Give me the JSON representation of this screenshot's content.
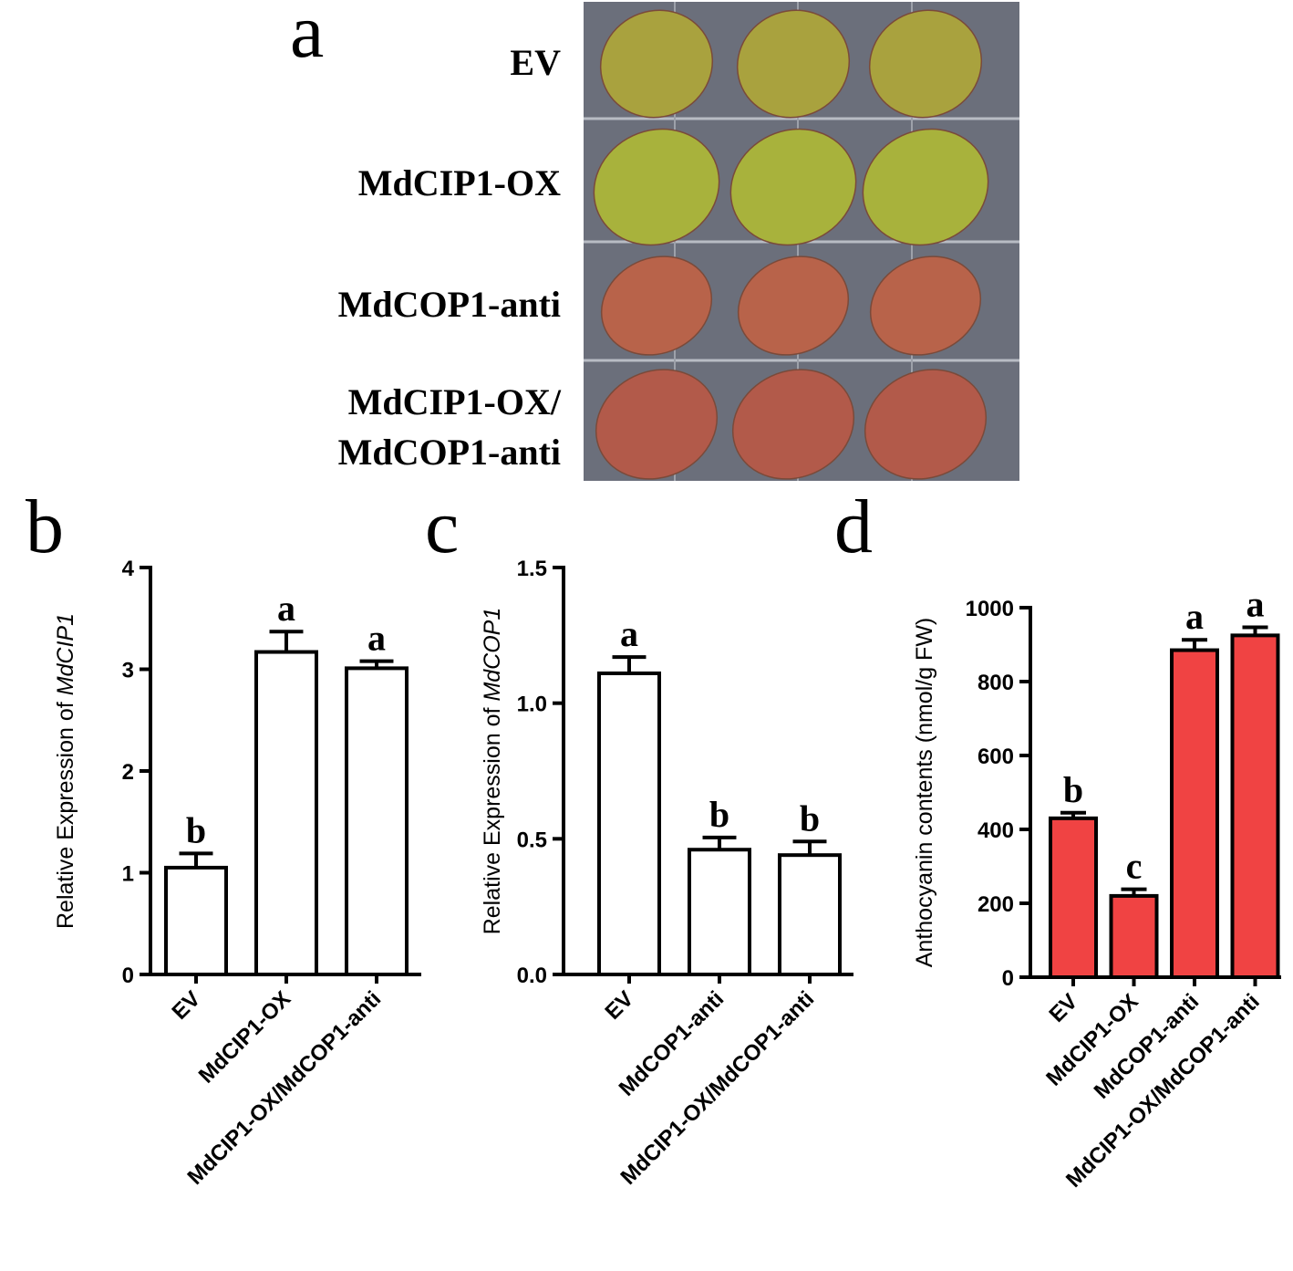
{
  "photo_panel": {
    "panel_label": "a",
    "row_labels": [
      [
        "EV"
      ],
      [
        "MdCIP1-OX"
      ],
      [
        "MdCOP1-anti"
      ],
      [
        "MdCIP1-OX/",
        "MdCOP1-anti"
      ]
    ]
  },
  "chart_data": [
    {
      "type": "bar",
      "panel_label": "b",
      "ylabel": "Relative Expression of",
      "ylabel_italic": "MdCIP1",
      "categories": [
        "EV",
        "MdCIP1-OX",
        "MdCIP1-OX/MdCOP1-anti"
      ],
      "values": [
        1.05,
        3.17,
        3.01
      ],
      "errors": [
        0.14,
        0.2,
        0.07
      ],
      "annotations": [
        "b",
        "a",
        "a"
      ],
      "color": "#ffffff",
      "ylim": [
        0,
        4
      ],
      "yticks": [
        0,
        1,
        2,
        3,
        4
      ]
    },
    {
      "type": "bar",
      "panel_label": "c",
      "ylabel": "Relative Expression of",
      "ylabel_italic": "MdCOP1",
      "categories": [
        "EV",
        "MdCOP1-anti",
        "MdCIP1-OX/MdCOP1-anti"
      ],
      "values": [
        1.11,
        0.46,
        0.44
      ],
      "errors": [
        0.06,
        0.045,
        0.05
      ],
      "annotations": [
        "a",
        "b",
        "b"
      ],
      "color": "#ffffff",
      "ylim": [
        0,
        1.5
      ],
      "yticks": [
        {
          "value": 0,
          "label": "0.0"
        },
        0.5,
        {
          "value": 1,
          "label": "1.0"
        },
        1.5
      ]
    },
    {
      "type": "bar",
      "panel_label": "d",
      "ylabel": "Anthocyanin contents (nmol/g FW)",
      "categories": [
        "EV",
        "MdCIP1-OX",
        "MdCOP1-anti",
        "MdCIP1-OX/MdCOP1-anti"
      ],
      "values": [
        430,
        220,
        885,
        925
      ],
      "errors": [
        15,
        18,
        28,
        22
      ],
      "annotations": [
        "b",
        "c",
        "a",
        "a"
      ],
      "color": "#f04343",
      "ylim": [
        0,
        1000
      ],
      "yticks": [
        0,
        200,
        400,
        600,
        800,
        1000
      ]
    }
  ]
}
